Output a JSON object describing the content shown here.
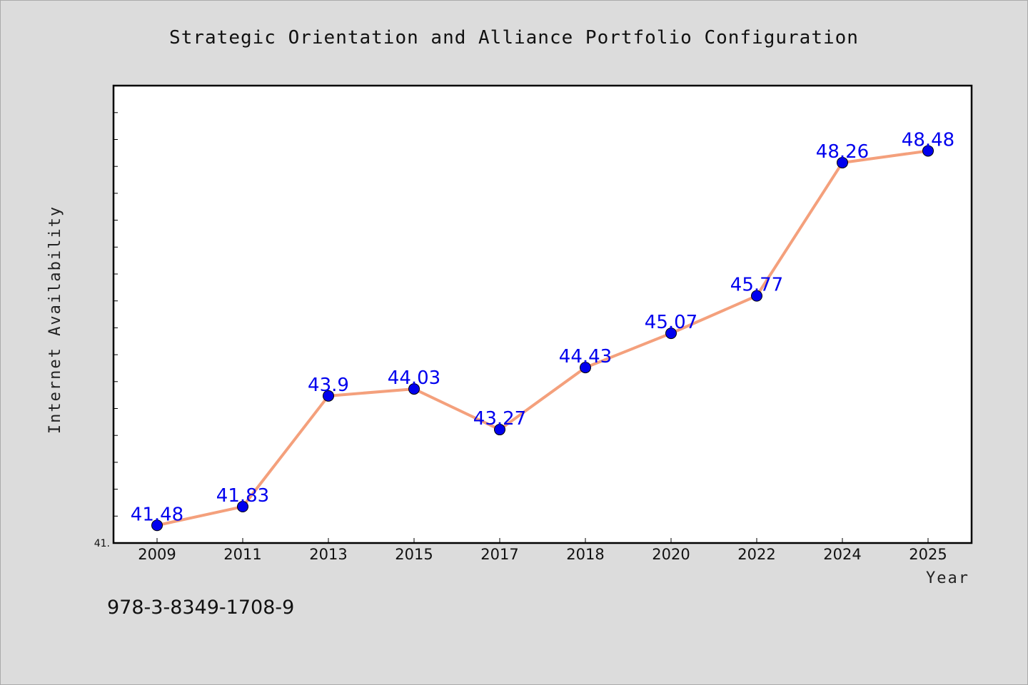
{
  "chart_data": {
    "type": "line",
    "title": "Strategic Orientation and Alliance Portfolio Configuration",
    "xlabel": "Year",
    "ylabel": "Internet Availability",
    "categories": [
      "2009",
      "2011",
      "2013",
      "2015",
      "2017",
      "2018",
      "2020",
      "2022",
      "2024",
      "2025"
    ],
    "series": [
      {
        "values": [
          41.48,
          41.83,
          43.9,
          44.03,
          43.27,
          44.43,
          45.07,
          45.77,
          48.26,
          48.48
        ],
        "labels": [
          "41.48",
          "41.83",
          "43.9",
          "44.03",
          "43.27",
          "44.43",
          "45.07",
          "45.77",
          "48.26",
          "48.48"
        ],
        "line_color": "#f4a07c",
        "marker_color": "#0000ee"
      }
    ],
    "ylim": [
      41.15,
      49.7
    ],
    "ytick_visible_label": "41.",
    "grid": false,
    "legend": "none"
  },
  "footnote": "978-3-8349-1708-9"
}
